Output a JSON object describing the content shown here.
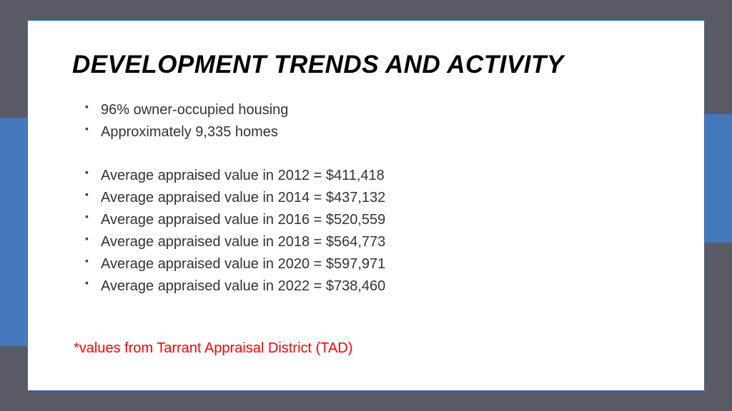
{
  "colors": {
    "frame_background": "#5a5a66",
    "slide_background": "#ffffff",
    "slide_border": "#3a6ba5",
    "accent": "#4577bc",
    "title_text": "#000000",
    "body_text": "#333333",
    "footnote_text": "#ff0000",
    "bullet_marker": "#444444"
  },
  "title": "DEVELOPMENT TRENDS AND ACTIVITY",
  "bullets_group1": [
    "96% owner-occupied housing",
    "Approximately 9,335 homes"
  ],
  "bullets_group2": [
    "Average appraised value in 2012 = $411,418",
    "Average appraised value in 2014 = $437,132",
    "Average appraised value in 2016 = $520,559",
    "Average appraised value in 2018 = $564,773",
    "Average appraised value in 2020 = $597,971",
    "Average appraised value in 2022 = $738,460"
  ],
  "footnote": "*values from Tarrant Appraisal District (TAD)"
}
